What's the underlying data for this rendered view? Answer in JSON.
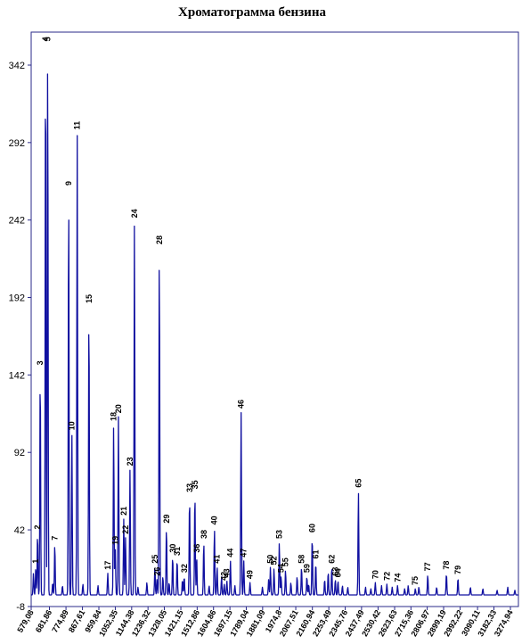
{
  "chart_data": {
    "type": "line",
    "title": "Хроматограмма бензина",
    "xlabel": "",
    "ylabel": "",
    "ylim": [
      -8,
      362
    ],
    "xlim": [
      579.08,
      3320
    ],
    "y_ticks": [
      "-8",
      "42",
      "92",
      "142",
      "192",
      "242",
      "292",
      "342"
    ],
    "x_ticks": [
      {
        "x": 579.08,
        "label": "579,08"
      },
      {
        "x": 681.86,
        "label": "681,86"
      },
      {
        "x": 774.89,
        "label": "774,89"
      },
      {
        "x": 867.61,
        "label": "867,61"
      },
      {
        "x": 959.84,
        "label": "959,84"
      },
      {
        "x": 1052.35,
        "label": "1052,35"
      },
      {
        "x": 1144.38,
        "label": "1144,38"
      },
      {
        "x": 1236.32,
        "label": "1236,32"
      },
      {
        "x": 1328.05,
        "label": "1328,05"
      },
      {
        "x": 1421.15,
        "label": "1421,15"
      },
      {
        "x": 1512.86,
        "label": "1512,86"
      },
      {
        "x": 1604.86,
        "label": "1604,86"
      },
      {
        "x": 1697.15,
        "label": "1697,15"
      },
      {
        "x": 1789.04,
        "label": "1789,04"
      },
      {
        "x": 1881.09,
        "label": "1881,09"
      },
      {
        "x": 1974.8,
        "label": "1974,8"
      },
      {
        "x": 2067.51,
        "label": "2067,51"
      },
      {
        "x": 2160.94,
        "label": "2160,94"
      },
      {
        "x": 2253.49,
        "label": "2253,49"
      },
      {
        "x": 2345.76,
        "label": "2345,76"
      },
      {
        "x": 2437.49,
        "label": "2437,49"
      },
      {
        "x": 2530.42,
        "label": "2530,42"
      },
      {
        "x": 2623.63,
        "label": "2623,63"
      },
      {
        "x": 2715.36,
        "label": "2715,36"
      },
      {
        "x": 2806.97,
        "label": "2806,97"
      },
      {
        "x": 2899.19,
        "label": "2899,19"
      },
      {
        "x": 2992.22,
        "label": "2992,22"
      },
      {
        "x": 3090.11,
        "label": "3090,11"
      },
      {
        "x": 3182.33,
        "label": "3182,33"
      },
      {
        "x": 3274.94,
        "label": "3274,94"
      }
    ],
    "peaks": [
      {
        "label": "1",
        "x": 605,
        "y": 18
      },
      {
        "label": "2",
        "x": 615,
        "y": 40
      },
      {
        "label": "3",
        "x": 630,
        "y": 146
      },
      {
        "label": "4",
        "x": 660,
        "y": 355
      },
      {
        "label": "5",
        "x": 672,
        "y": 355
      },
      {
        "label": "7",
        "x": 712,
        "y": 33
      },
      {
        "label": "9",
        "x": 790,
        "y": 262
      },
      {
        "label": "10",
        "x": 808,
        "y": 104
      },
      {
        "label": "11",
        "x": 838,
        "y": 298
      },
      {
        "label": "15",
        "x": 904,
        "y": 186
      },
      {
        "label": "17",
        "x": 1010,
        "y": 14
      },
      {
        "label": "18",
        "x": 1043,
        "y": 110
      },
      {
        "label": "19",
        "x": 1052,
        "y": 30
      },
      {
        "label": "20",
        "x": 1070,
        "y": 115
      },
      {
        "label": "21",
        "x": 1100,
        "y": 49
      },
      {
        "label": "22",
        "x": 1110,
        "y": 37
      },
      {
        "label": "23",
        "x": 1135,
        "y": 81
      },
      {
        "label": "24",
        "x": 1160,
        "y": 241
      },
      {
        "label": "25",
        "x": 1275,
        "y": 18
      },
      {
        "label": "26",
        "x": 1287,
        "y": 10
      },
      {
        "label": "28",
        "x": 1300,
        "y": 224
      },
      {
        "label": "29",
        "x": 1340,
        "y": 44
      },
      {
        "label": "30",
        "x": 1375,
        "y": 25
      },
      {
        "label": "31",
        "x": 1400,
        "y": 23
      },
      {
        "label": "32",
        "x": 1440,
        "y": 12
      },
      {
        "label": "33",
        "x": 1470,
        "y": 64
      },
      {
        "label": "35",
        "x": 1500,
        "y": 66
      },
      {
        "label": "36",
        "x": 1510,
        "y": 25
      },
      {
        "label": "38",
        "x": 1550,
        "y": 34
      },
      {
        "label": "40",
        "x": 1610,
        "y": 43
      },
      {
        "label": "41",
        "x": 1625,
        "y": 18
      },
      {
        "label": "42",
        "x": 1665,
        "y": 7
      },
      {
        "label": "43",
        "x": 1680,
        "y": 9
      },
      {
        "label": "44",
        "x": 1700,
        "y": 22
      },
      {
        "label": "46",
        "x": 1760,
        "y": 118
      },
      {
        "label": "47",
        "x": 1775,
        "y": 22
      },
      {
        "label": "49",
        "x": 1810,
        "y": 8
      },
      {
        "label": "50",
        "x": 1925,
        "y": 18
      },
      {
        "label": "52",
        "x": 1945,
        "y": 17
      },
      {
        "label": "53",
        "x": 1975,
        "y": 34
      },
      {
        "label": "54",
        "x": 1985,
        "y": 12
      },
      {
        "label": "55",
        "x": 2010,
        "y": 16
      },
      {
        "label": "58",
        "x": 2100,
        "y": 18
      },
      {
        "label": "59",
        "x": 2130,
        "y": 12
      },
      {
        "label": "60",
        "x": 2160,
        "y": 38
      },
      {
        "label": "61",
        "x": 2180,
        "y": 21
      },
      {
        "label": "62",
        "x": 2270,
        "y": 18
      },
      {
        "label": "63",
        "x": 2290,
        "y": 10
      },
      {
        "label": "64",
        "x": 2305,
        "y": 9
      },
      {
        "label": "65",
        "x": 2420,
        "y": 67
      },
      {
        "label": "70",
        "x": 2515,
        "y": 8
      },
      {
        "label": "72",
        "x": 2580,
        "y": 7
      },
      {
        "label": "74",
        "x": 2640,
        "y": 6
      },
      {
        "label": "75",
        "x": 2740,
        "y": 4
      },
      {
        "label": "77",
        "x": 2810,
        "y": 13
      },
      {
        "label": "78",
        "x": 2915,
        "y": 14
      },
      {
        "label": "79",
        "x": 2980,
        "y": 11
      }
    ],
    "minor_peaks": [
      [
        592,
        14
      ],
      [
        700,
        8
      ],
      [
        755,
        6
      ],
      [
        870,
        7
      ],
      [
        955,
        6
      ],
      [
        1180,
        5
      ],
      [
        1230,
        8
      ],
      [
        1320,
        12
      ],
      [
        1355,
        8
      ],
      [
        1430,
        10
      ],
      [
        1580,
        6
      ],
      [
        1650,
        12
      ],
      [
        1725,
        6
      ],
      [
        1880,
        5
      ],
      [
        1915,
        10
      ],
      [
        2040,
        8
      ],
      [
        2075,
        12
      ],
      [
        2140,
        7
      ],
      [
        2230,
        10
      ],
      [
        2250,
        15
      ],
      [
        2330,
        6
      ],
      [
        2360,
        5
      ],
      [
        2460,
        5
      ],
      [
        2490,
        4
      ],
      [
        2550,
        6
      ],
      [
        2610,
        5
      ],
      [
        2680,
        4
      ],
      [
        2700,
        6
      ],
      [
        2760,
        5
      ],
      [
        2860,
        5
      ],
      [
        3050,
        5
      ],
      [
        3120,
        4
      ],
      [
        3200,
        3
      ],
      [
        3260,
        5
      ],
      [
        3300,
        3
      ]
    ],
    "grid": false,
    "legend": "none",
    "line_color": "#1010a0"
  }
}
